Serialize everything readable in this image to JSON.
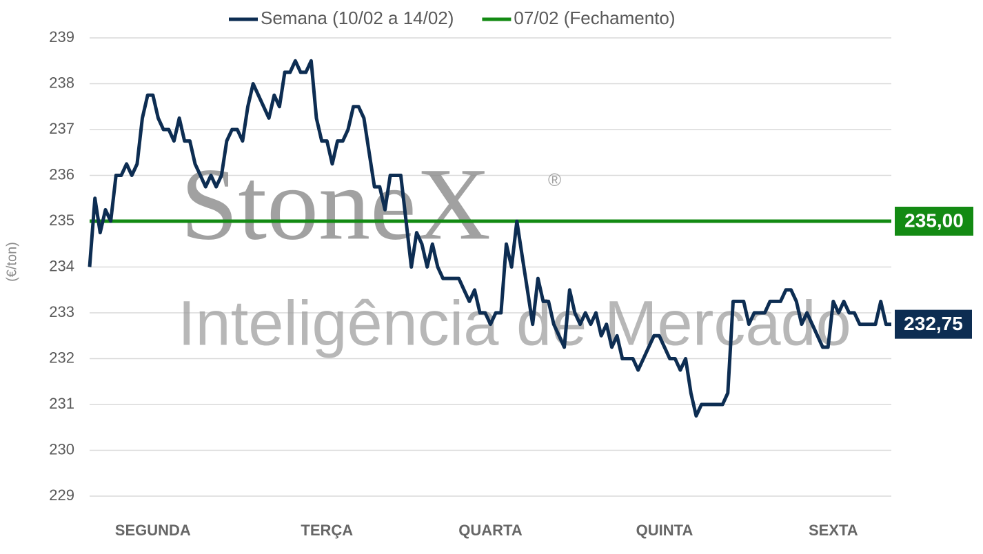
{
  "chart_data": {
    "type": "line",
    "y_label": "(€/ton)",
    "watermark": {
      "brand": "StoneX",
      "mark": "®",
      "tagline": "Inteligência de Mercado"
    },
    "categories": [
      null,
      null,
      null,
      null,
      null,
      null,
      null,
      null,
      null,
      null,
      null,
      null,
      "SEGUNDA",
      null,
      null,
      null,
      null,
      null,
      null,
      null,
      null,
      null,
      null,
      null,
      null,
      null,
      null,
      null,
      null,
      null,
      null,
      null,
      null,
      null,
      null,
      null,
      null,
      null,
      null,
      null,
      null,
      null,
      null,
      null,
      null,
      "TERÇA",
      null,
      null,
      null,
      null,
      null,
      null,
      null,
      null,
      null,
      null,
      null,
      null,
      null,
      null,
      null,
      null,
      null,
      null,
      null,
      null,
      null,
      null,
      null,
      null,
      null,
      null,
      null,
      null,
      null,
      null,
      "QUARTA",
      null,
      null,
      null,
      null,
      null,
      null,
      null,
      null,
      null,
      null,
      null,
      null,
      null,
      null,
      null,
      null,
      null,
      null,
      null,
      null,
      null,
      null,
      null,
      null,
      null,
      null,
      null,
      null,
      null,
      null,
      null,
      null,
      "QUINTA",
      null,
      null,
      null,
      null,
      null,
      null,
      null,
      null,
      null,
      null,
      null,
      null,
      null,
      null,
      null,
      null,
      null,
      null,
      null,
      null,
      null,
      null,
      null,
      null,
      null,
      null,
      null,
      null,
      null,
      null,
      null,
      "SEXTA",
      null,
      null,
      null,
      null,
      null,
      null,
      null,
      null,
      null,
      null,
      null
    ],
    "series": [
      {
        "name": "Semana (10/02 a 14/02)",
        "color": "#0d2d52",
        "last_value_label": "232,75",
        "values": [
          234,
          235.5,
          234.75,
          235.25,
          235,
          236,
          236,
          236.25,
          236,
          236.25,
          237.25,
          237.75,
          237.75,
          237.25,
          237,
          237,
          236.75,
          237.25,
          236.75,
          236.75,
          236.25,
          236,
          235.75,
          236,
          235.75,
          236,
          236.75,
          237,
          237,
          236.75,
          237.5,
          238,
          237.75,
          237.5,
          237.25,
          237.75,
          237.5,
          238.25,
          238.25,
          238.5,
          238.25,
          238.25,
          238.5,
          237.25,
          236.75,
          236.75,
          236.25,
          236.75,
          236.75,
          237,
          237.5,
          237.5,
          237.25,
          236.5,
          235.75,
          235.75,
          235.25,
          236,
          236,
          236,
          235,
          234,
          234.75,
          234.5,
          234,
          234.5,
          234,
          233.75,
          233.75,
          233.75,
          233.75,
          233.5,
          233.25,
          233.5,
          233,
          233,
          232.75,
          233,
          233,
          234.5,
          234,
          235,
          234.25,
          233.5,
          232.75,
          233.75,
          233.25,
          233.25,
          232.75,
          232.5,
          232.25,
          233.5,
          233,
          232.75,
          233,
          232.75,
          233,
          232.5,
          232.75,
          232.25,
          232.5,
          232,
          232,
          232,
          231.75,
          232,
          232.25,
          232.5,
          232.5,
          232.25,
          232,
          232,
          231.75,
          232,
          231.25,
          230.75,
          231,
          231,
          231,
          231,
          231,
          231.25,
          233.25,
          233.25,
          233.25,
          232.75,
          233,
          233,
          233,
          233.25,
          233.25,
          233.25,
          233.5,
          233.5,
          233.25,
          232.75,
          233,
          232.75,
          232.5,
          232.25,
          232.25,
          233.25,
          233,
          233.25,
          233,
          233,
          232.75,
          232.75,
          232.75,
          232.75,
          233.25,
          232.75,
          232.75
        ]
      }
    ],
    "reference_lines": [
      {
        "name": "07/02 (Fechamento)",
        "color": "#138a13",
        "value": 235,
        "value_label": "235,00"
      }
    ],
    "ylim": [
      229,
      239
    ],
    "yticks": [
      229,
      230,
      231,
      232,
      233,
      234,
      235,
      236,
      237,
      238,
      239
    ],
    "grid": true
  }
}
